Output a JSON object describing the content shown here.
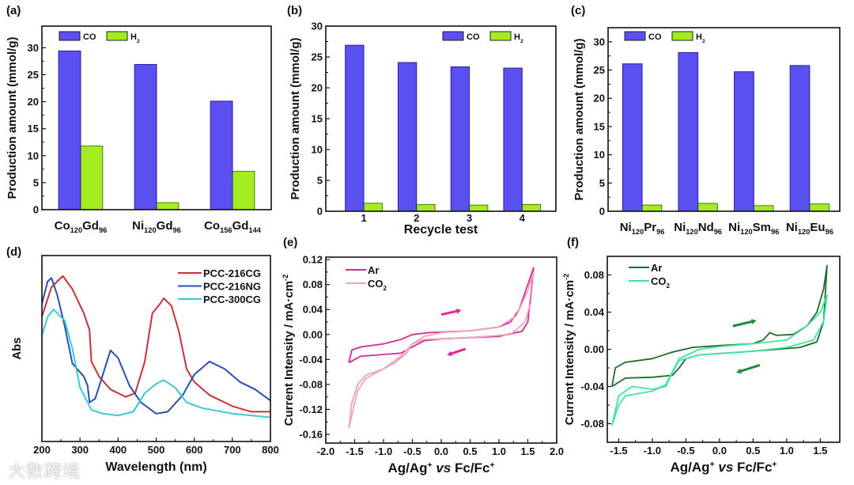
{
  "figure": {
    "watermark": "大数跨境"
  },
  "chart_data": [
    {
      "id": "a",
      "panel_label": "(a)",
      "type": "bar",
      "categories": [
        "Co120Gd96",
        "Ni120Gd96",
        "Co156Gd144"
      ],
      "series": [
        {
          "name": "H2",
          "color": "#a3ec1e",
          "values": [
            11.8,
            1.3,
            7.1
          ]
        },
        {
          "name": "CO",
          "color": "#5a4ff0",
          "values": [
            29.4,
            26.9,
            20.1
          ]
        }
      ],
      "series_order": [
        "CO",
        "H2"
      ],
      "xlabel": "",
      "ylabel": "Production amount (mmol/g)",
      "ylim": [
        0,
        34
      ],
      "xlim": [
        -0.51,
        2.51
      ],
      "yticks": [
        "0",
        "5",
        "10",
        "15",
        "20",
        "25",
        "30"
      ],
      "legend": "top-left"
    },
    {
      "id": "b",
      "panel_label": "(b)",
      "type": "bar",
      "categories": [
        "1",
        "2",
        "3",
        "4"
      ],
      "series": [
        {
          "name": "H2",
          "color": "#a3ec1e",
          "values": [
            1.3,
            1.1,
            1.0,
            1.1
          ]
        },
        {
          "name": "CO",
          "color": "#5a4ff0",
          "values": [
            26.9,
            24.1,
            23.4,
            23.2
          ]
        }
      ],
      "series_order": [
        "CO",
        "H2"
      ],
      "xlabel": "Recycle test",
      "ylabel": "Production amount (mmol/g)",
      "ylim": [
        0,
        30
      ],
      "xlim": [
        -0.72,
        3.64
      ],
      "yticks": [
        "0",
        "5",
        "10",
        "15",
        "20",
        "25",
        "30"
      ],
      "legend": "top-right"
    },
    {
      "id": "c",
      "panel_label": "(c)",
      "type": "bar",
      "categories": [
        "Ni120Pr96",
        "Ni120Nd96",
        "Ni120Sm96",
        "Ni120Eu96"
      ],
      "series": [
        {
          "name": "H2",
          "color": "#a3ec1e",
          "values": [
            1.1,
            1.4,
            1.0,
            1.3
          ]
        },
        {
          "name": "CO",
          "color": "#5a4ff0",
          "values": [
            26.1,
            28.1,
            24.7,
            25.8
          ]
        }
      ],
      "series_order": [
        "CO",
        "H2"
      ],
      "xlabel": "",
      "ylabel": "Production amount (mmol/g)",
      "ylim": [
        0,
        32.5
      ],
      "xlim": [
        -0.61,
        3.54
      ],
      "yticks": [
        "0",
        "5",
        "10",
        "15",
        "20",
        "25",
        "30"
      ],
      "legend": "top-left"
    },
    {
      "id": "d",
      "panel_label": "(d)",
      "type": "line",
      "xlabel": "Wavelength (nm)",
      "ylabel": "Abs",
      "xlim": [
        200,
        800
      ],
      "ylim": [
        0,
        1
      ],
      "xticks": [
        "200",
        "300",
        "400",
        "500",
        "600",
        "700",
        "800"
      ],
      "yticks": [],
      "legend": "top-right",
      "series": [
        {
          "name": "PCC-216CG",
          "color": "#c8303c",
          "points": [
            [
              200,
              0.67
            ],
            [
              225,
              0.83
            ],
            [
              255,
              0.89
            ],
            [
              280,
              0.82
            ],
            [
              310,
              0.69
            ],
            [
              325,
              0.6
            ],
            [
              330,
              0.43
            ],
            [
              350,
              0.35
            ],
            [
              380,
              0.28
            ],
            [
              420,
              0.24
            ],
            [
              445,
              0.26
            ],
            [
              470,
              0.43
            ],
            [
              490,
              0.69
            ],
            [
              510,
              0.74
            ],
            [
              520,
              0.77
            ],
            [
              540,
              0.73
            ],
            [
              560,
              0.59
            ],
            [
              580,
              0.39
            ],
            [
              600,
              0.32
            ],
            [
              640,
              0.25
            ],
            [
              700,
              0.19
            ],
            [
              750,
              0.16
            ],
            [
              800,
              0.16
            ]
          ]
        },
        {
          "name": "PCC-216NG",
          "color": "#2a4fb0",
          "points": [
            [
              200,
              0.74
            ],
            [
              215,
              0.86
            ],
            [
              225,
              0.88
            ],
            [
              240,
              0.79
            ],
            [
              260,
              0.62
            ],
            [
              280,
              0.42
            ],
            [
              310,
              0.35
            ],
            [
              320,
              0.3
            ],
            [
              325,
              0.21
            ],
            [
              340,
              0.23
            ],
            [
              360,
              0.36
            ],
            [
              380,
              0.49
            ],
            [
              400,
              0.45
            ],
            [
              430,
              0.3
            ],
            [
              460,
              0.21
            ],
            [
              500,
              0.15
            ],
            [
              530,
              0.16
            ],
            [
              570,
              0.25
            ],
            [
              600,
              0.36
            ],
            [
              640,
              0.43
            ],
            [
              680,
              0.39
            ],
            [
              720,
              0.32
            ],
            [
              760,
              0.28
            ],
            [
              800,
              0.22
            ]
          ]
        },
        {
          "name": "PCC-300CG",
          "color": "#3cc8d4",
          "points": [
            [
              200,
              0.57
            ],
            [
              215,
              0.67
            ],
            [
              230,
              0.71
            ],
            [
              260,
              0.65
            ],
            [
              280,
              0.5
            ],
            [
              300,
              0.29
            ],
            [
              320,
              0.21
            ],
            [
              330,
              0.17
            ],
            [
              360,
              0.15
            ],
            [
              400,
              0.14
            ],
            [
              440,
              0.16
            ],
            [
              470,
              0.26
            ],
            [
              500,
              0.31
            ],
            [
              520,
              0.33
            ],
            [
              550,
              0.29
            ],
            [
              580,
              0.21
            ],
            [
              620,
              0.18
            ],
            [
              700,
              0.15
            ],
            [
              800,
              0.13
            ]
          ]
        }
      ]
    },
    {
      "id": "e",
      "panel_label": "(e)",
      "type": "line",
      "xlabel": "Ag/Ag+ vs Fc/Fc+",
      "ylabel": "Current Intensity / mA·cm-2",
      "xlim": [
        -2,
        2
      ],
      "ylim": [
        -0.174,
        0.124
      ],
      "xticks": [
        "-2.0",
        "-1.5",
        "-1.0",
        "-0.5",
        "0.0",
        "0.5",
        "1.0",
        "1.5",
        "2.0"
      ],
      "yticks": [
        "-0.16",
        "-0.12",
        "-0.08",
        "-0.04",
        "0.00",
        "0.04",
        "0.08",
        "0.12"
      ],
      "legend": "top-left",
      "arrows": [
        {
          "from": [
            0.0,
            0.032
          ],
          "to": [
            0.35,
            0.039
          ]
        },
        {
          "from": [
            0.42,
            -0.023
          ],
          "to": [
            0.1,
            -0.033
          ]
        }
      ],
      "arrow_color": "#e0289a",
      "series": [
        {
          "name": "Ar",
          "color": "#d4289a",
          "points": [
            [
              -1.6,
              -0.045
            ],
            [
              -1.55,
              -0.025
            ],
            [
              -1.4,
              -0.02
            ],
            [
              -1.0,
              -0.015
            ],
            [
              -0.7,
              -0.008
            ],
            [
              -0.5,
              0.0
            ],
            [
              -0.2,
              0.003
            ],
            [
              0.5,
              0.006
            ],
            [
              1.0,
              0.012
            ],
            [
              1.2,
              0.02
            ],
            [
              1.35,
              0.04
            ],
            [
              1.5,
              0.08
            ],
            [
              1.6,
              0.107
            ],
            [
              1.55,
              0.06
            ],
            [
              1.5,
              0.02
            ],
            [
              1.4,
              0.005
            ],
            [
              1.0,
              -0.003
            ],
            [
              0.5,
              -0.005
            ],
            [
              0.0,
              -0.007
            ],
            [
              -0.3,
              -0.01
            ],
            [
              -0.5,
              -0.02
            ],
            [
              -0.7,
              -0.03
            ],
            [
              -1.0,
              -0.032
            ],
            [
              -1.4,
              -0.035
            ],
            [
              -1.6,
              -0.045
            ]
          ]
        },
        {
          "name": "CO2",
          "color": "#eea2bc",
          "points": [
            [
              -1.6,
              -0.15
            ],
            [
              -1.55,
              -0.11
            ],
            [
              -1.45,
              -0.08
            ],
            [
              -1.3,
              -0.065
            ],
            [
              -1.0,
              -0.055
            ],
            [
              -0.7,
              -0.035
            ],
            [
              -0.5,
              -0.015
            ],
            [
              -0.3,
              -0.003
            ],
            [
              0.0,
              0.003
            ],
            [
              0.5,
              0.006
            ],
            [
              1.0,
              0.012
            ],
            [
              1.3,
              0.03
            ],
            [
              1.5,
              0.07
            ],
            [
              1.6,
              0.1
            ],
            [
              1.55,
              0.05
            ],
            [
              1.45,
              0.02
            ],
            [
              1.2,
              0.0
            ],
            [
              0.5,
              -0.005
            ],
            [
              -0.3,
              -0.008
            ],
            [
              -0.5,
              -0.015
            ],
            [
              -0.6,
              -0.03
            ],
            [
              -0.8,
              -0.045
            ],
            [
              -1.0,
              -0.055
            ],
            [
              -1.3,
              -0.07
            ],
            [
              -1.45,
              -0.09
            ],
            [
              -1.6,
              -0.15
            ]
          ]
        }
      ]
    },
    {
      "id": "f",
      "panel_label": "(f)",
      "type": "line",
      "xlabel": "Ag/Ag+ vs Fc/Fc+",
      "ylabel": "Current Intensity / mA·cm-2",
      "xlim": [
        -1.67,
        1.79
      ],
      "ylim": [
        -0.1,
        0.1
      ],
      "xticks": [
        "-1.5",
        "-1.0",
        "-0.5",
        "0.0",
        "0.5",
        "1.0",
        "1.5"
      ],
      "yticks": [
        "-0.08",
        "-0.04",
        "0.00",
        "0.04",
        "0.08"
      ],
      "legend": "top-left",
      "arrows": [
        {
          "from": [
            0.2,
            0.025
          ],
          "to": [
            0.55,
            0.031
          ]
        },
        {
          "from": [
            0.6,
            -0.017
          ],
          "to": [
            0.25,
            -0.025
          ]
        }
      ],
      "arrow_color": "#1f8a3a",
      "series": [
        {
          "name": "Ar",
          "color": "#1e6b2c",
          "points": [
            [
              -1.6,
              -0.04
            ],
            [
              -1.55,
              -0.02
            ],
            [
              -1.4,
              -0.014
            ],
            [
              -1.0,
              -0.01
            ],
            [
              -0.7,
              -0.003
            ],
            [
              -0.4,
              0.002
            ],
            [
              0.0,
              0.004
            ],
            [
              0.5,
              0.006
            ],
            [
              0.65,
              0.01
            ],
            [
              0.75,
              0.018
            ],
            [
              0.85,
              0.015
            ],
            [
              1.1,
              0.016
            ],
            [
              1.3,
              0.025
            ],
            [
              1.45,
              0.04
            ],
            [
              1.55,
              0.065
            ],
            [
              1.6,
              0.09
            ],
            [
              1.55,
              0.03
            ],
            [
              1.45,
              0.008
            ],
            [
              1.2,
              0.002
            ],
            [
              0.5,
              -0.002
            ],
            [
              -0.3,
              -0.006
            ],
            [
              -0.5,
              -0.01
            ],
            [
              -0.6,
              -0.02
            ],
            [
              -0.7,
              -0.028
            ],
            [
              -1.0,
              -0.03
            ],
            [
              -1.4,
              -0.031
            ],
            [
              -1.6,
              -0.04
            ]
          ]
        },
        {
          "name": "CO2",
          "color": "#3ee6a0",
          "points": [
            [
              -1.6,
              -0.082
            ],
            [
              -1.5,
              -0.06
            ],
            [
              -1.4,
              -0.05
            ],
            [
              -1.0,
              -0.045
            ],
            [
              -0.8,
              -0.038
            ],
            [
              -0.6,
              -0.01
            ],
            [
              -0.3,
              0.0
            ],
            [
              0.0,
              0.003
            ],
            [
              0.5,
              0.006
            ],
            [
              1.0,
              0.01
            ],
            [
              1.3,
              0.025
            ],
            [
              1.5,
              0.04
            ],
            [
              1.6,
              0.058
            ],
            [
              1.55,
              0.03
            ],
            [
              1.4,
              0.01
            ],
            [
              1.0,
              0.002
            ],
            [
              0.5,
              -0.002
            ],
            [
              -0.3,
              -0.006
            ],
            [
              -0.6,
              -0.012
            ],
            [
              -0.7,
              -0.025
            ],
            [
              -0.8,
              -0.04
            ],
            [
              -1.0,
              -0.043
            ],
            [
              -1.3,
              -0.04
            ],
            [
              -1.5,
              -0.05
            ],
            [
              -1.6,
              -0.082
            ]
          ]
        }
      ]
    }
  ]
}
